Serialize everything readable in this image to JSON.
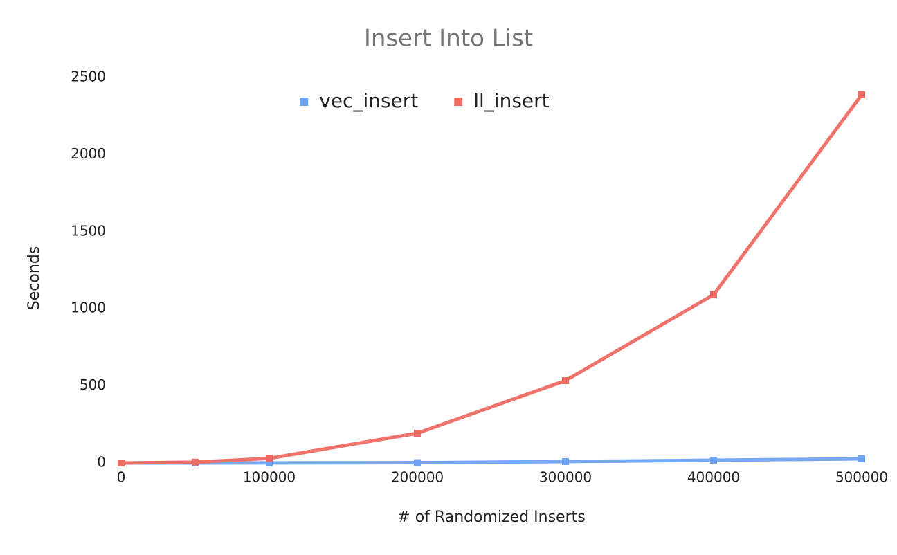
{
  "chart_data": {
    "type": "line",
    "title": "Insert Into List",
    "x_label": "# of Randomized Inserts",
    "y_label": "Seconds",
    "x": [
      0,
      50000,
      100000,
      200000,
      300000,
      400000,
      500000
    ],
    "series": [
      {
        "name": "vec_insert",
        "color": "#6fa3f2",
        "values": [
          0,
          0,
          0.5,
          2,
          9,
          18,
          27
        ]
      },
      {
        "name": "ll_insert",
        "color": "#ee6b63",
        "values": [
          0,
          5,
          30,
          193,
          534,
          1091,
          2388
        ]
      }
    ],
    "xlim": [
      0,
      500000
    ],
    "xticks": [
      0,
      100000,
      200000,
      300000,
      400000,
      500000
    ],
    "ylim": [
      0,
      2500
    ],
    "yticks": [
      0,
      500,
      1000,
      1500,
      2000,
      2500
    ],
    "grid": false,
    "legend": "top"
  }
}
